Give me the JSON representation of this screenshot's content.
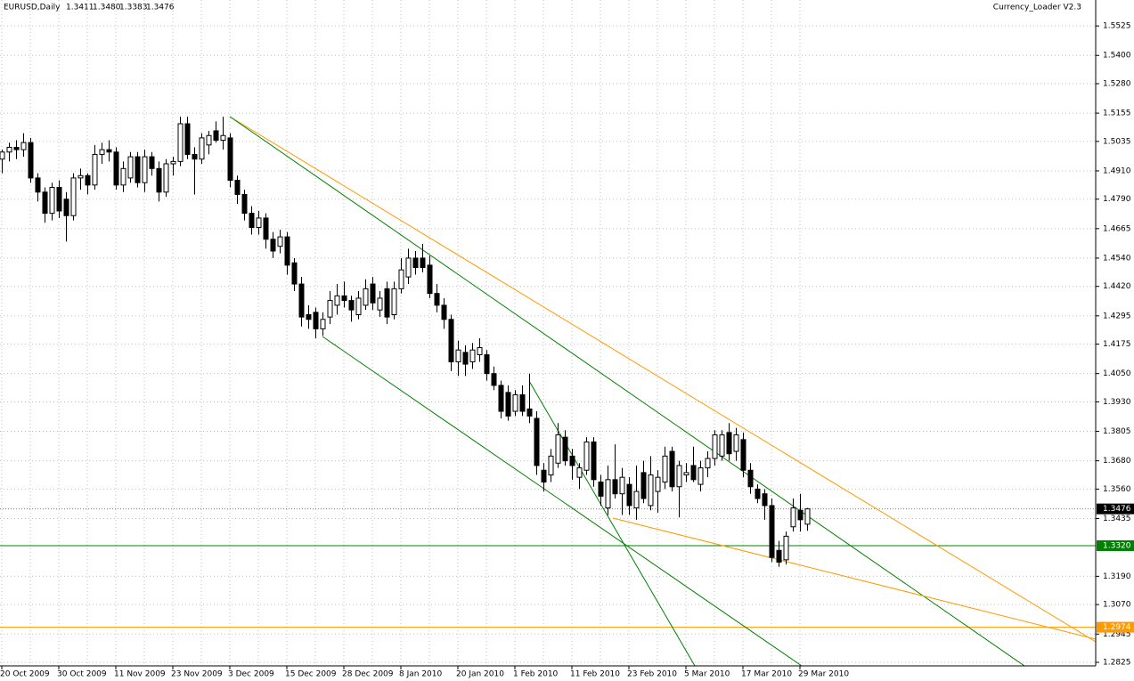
{
  "chart_data": {
    "type": "candlestick",
    "header": {
      "symbol": "EURUSD,Daily",
      "ohlc": [
        "1.3411",
        "1.3480",
        "1.3383",
        "1.3476"
      ]
    },
    "indicator_label": "Currency_Loader V2.3",
    "categories": [
      "20 Oct 2009",
      null,
      null,
      null,
      null,
      null,
      null,
      null,
      "30 Oct 2009",
      null,
      null,
      null,
      null,
      null,
      null,
      null,
      "11 Nov 2009",
      null,
      null,
      null,
      null,
      null,
      null,
      null,
      "23 Nov 2009",
      null,
      null,
      null,
      null,
      null,
      null,
      null,
      "3 Dec 2009",
      null,
      null,
      null,
      null,
      null,
      null,
      null,
      "15 Dec 2009",
      null,
      null,
      null,
      null,
      null,
      null,
      null,
      "28 Dec 2009",
      null,
      null,
      null,
      null,
      null,
      null,
      null,
      "8 Jan 2010",
      null,
      null,
      null,
      null,
      null,
      null,
      null,
      "20 Jan 2010",
      null,
      null,
      null,
      null,
      null,
      null,
      null,
      "1 Feb 2010",
      null,
      null,
      null,
      null,
      null,
      null,
      null,
      "11 Feb 2010",
      null,
      null,
      null,
      null,
      null,
      null,
      null,
      "23 Feb 2010",
      null,
      null,
      null,
      null,
      null,
      null,
      null,
      "5 Mar 2010",
      null,
      null,
      null,
      null,
      null,
      null,
      null,
      "17 Mar 2010",
      null,
      null,
      null,
      null,
      null,
      null,
      null,
      "29 Mar 2010",
      null
    ],
    "open": [
      1.496,
      1.499,
      1.501,
      1.5,
      1.503,
      1.488,
      1.482,
      1.473,
      1.484,
      1.479,
      1.472,
      1.488,
      1.489,
      1.485,
      1.498,
      1.5,
      1.499,
      1.485,
      1.488,
      1.497,
      1.486,
      1.497,
      1.492,
      1.482,
      1.494,
      1.495,
      1.511,
      1.498,
      1.496,
      1.502,
      1.508,
      1.504,
      1.505,
      1.487,
      1.481,
      1.473,
      1.467,
      1.471,
      1.462,
      1.459,
      1.463,
      1.452,
      1.443,
      1.43,
      1.431,
      1.424,
      1.429,
      1.434,
      1.438,
      1.436,
      1.43,
      1.434,
      1.443,
      1.432,
      1.441,
      1.43,
      1.441,
      1.446,
      1.454,
      1.454,
      1.451,
      1.439,
      1.434,
      1.428,
      1.41,
      1.414,
      1.41,
      1.413,
      1.413,
      1.405,
      1.4,
      1.397,
      1.389,
      1.396,
      1.39,
      1.386,
      1.364,
      1.362,
      1.367,
      1.378,
      1.37,
      1.361,
      1.364,
      1.376,
      1.359,
      1.348,
      1.36,
      1.354,
      1.358,
      1.348,
      1.363,
      1.349,
      1.355,
      1.359,
      1.372,
      1.357,
      1.362,
      1.366,
      1.358,
      1.365,
      1.369,
      1.37,
      1.38,
      1.372,
      1.377,
      1.364,
      1.356,
      1.354,
      1.349,
      1.33,
      1.326,
      1.34,
      1.347,
      1.3411
    ],
    "high": [
      1.5,
      1.503,
      1.504,
      1.507,
      1.505,
      1.49,
      1.484,
      1.486,
      1.487,
      1.482,
      1.49,
      1.492,
      1.49,
      1.502,
      1.503,
      1.504,
      1.501,
      1.495,
      1.499,
      1.499,
      1.5,
      1.499,
      1.495,
      1.496,
      1.497,
      1.514,
      1.514,
      1.501,
      1.507,
      1.508,
      1.512,
      1.514,
      1.507,
      1.489,
      1.483,
      1.476,
      1.474,
      1.473,
      1.465,
      1.466,
      1.465,
      1.454,
      1.446,
      1.434,
      1.433,
      1.431,
      1.44,
      1.443,
      1.444,
      1.438,
      1.44,
      1.445,
      1.446,
      1.44,
      1.444,
      1.444,
      1.454,
      1.458,
      1.457,
      1.46,
      1.455,
      1.443,
      1.437,
      1.43,
      1.419,
      1.417,
      1.418,
      1.42,
      1.415,
      1.408,
      1.402,
      1.4,
      1.398,
      1.4,
      1.405,
      1.389,
      1.367,
      1.373,
      1.384,
      1.381,
      1.373,
      1.367,
      1.378,
      1.378,
      1.362,
      1.366,
      1.375,
      1.365,
      1.361,
      1.366,
      1.368,
      1.37,
      1.364,
      1.374,
      1.374,
      1.368,
      1.367,
      1.374,
      1.368,
      1.372,
      1.381,
      1.381,
      1.384,
      1.382,
      1.38,
      1.367,
      1.358,
      1.356,
      1.352,
      1.334,
      1.338,
      1.352,
      1.354,
      1.348
    ],
    "low": [
      1.49,
      1.495,
      1.496,
      1.497,
      1.486,
      1.478,
      1.469,
      1.47,
      1.471,
      1.461,
      1.47,
      1.483,
      1.481,
      1.483,
      1.494,
      1.495,
      1.483,
      1.482,
      1.486,
      1.484,
      1.482,
      1.489,
      1.478,
      1.48,
      1.489,
      1.493,
      1.496,
      1.481,
      1.494,
      1.498,
      1.503,
      1.5,
      1.484,
      1.477,
      1.47,
      1.464,
      1.464,
      1.458,
      1.454,
      1.456,
      1.447,
      1.44,
      1.425,
      1.424,
      1.42,
      1.421,
      1.426,
      1.43,
      1.433,
      1.427,
      1.428,
      1.432,
      1.432,
      1.429,
      1.426,
      1.428,
      1.439,
      1.443,
      1.447,
      1.448,
      1.437,
      1.431,
      1.424,
      1.406,
      1.404,
      1.404,
      1.407,
      1.41,
      1.402,
      1.398,
      1.386,
      1.385,
      1.387,
      1.387,
      1.384,
      1.362,
      1.355,
      1.359,
      1.365,
      1.366,
      1.36,
      1.356,
      1.362,
      1.357,
      1.349,
      1.345,
      1.352,
      1.345,
      1.345,
      1.343,
      1.35,
      1.347,
      1.346,
      1.356,
      1.355,
      1.344,
      1.359,
      1.359,
      1.355,
      1.361,
      1.366,
      1.368,
      1.368,
      1.368,
      1.361,
      1.354,
      1.35,
      1.343,
      1.325,
      1.323,
      1.324,
      1.338,
      1.338,
      1.3383
    ],
    "close": [
      1.499,
      1.501,
      1.5,
      1.503,
      1.488,
      1.482,
      1.473,
      1.484,
      1.474,
      1.472,
      1.488,
      1.489,
      1.485,
      1.498,
      1.5,
      1.499,
      1.485,
      1.492,
      1.497,
      1.486,
      1.497,
      1.492,
      1.482,
      1.494,
      1.495,
      1.511,
      1.498,
      1.496,
      1.505,
      1.506,
      1.504,
      1.506,
      1.487,
      1.481,
      1.473,
      1.467,
      1.471,
      1.462,
      1.457,
      1.463,
      1.451,
      1.443,
      1.429,
      1.428,
      1.424,
      1.428,
      1.436,
      1.438,
      1.436,
      1.432,
      1.437,
      1.441,
      1.435,
      1.437,
      1.429,
      1.441,
      1.449,
      1.454,
      1.45,
      1.45,
      1.439,
      1.434,
      1.428,
      1.41,
      1.415,
      1.409,
      1.415,
      1.416,
      1.405,
      1.4,
      1.389,
      1.387,
      1.396,
      1.389,
      1.387,
      1.366,
      1.359,
      1.37,
      1.379,
      1.368,
      1.366,
      1.365,
      1.376,
      1.36,
      1.353,
      1.36,
      1.354,
      1.361,
      1.349,
      1.355,
      1.352,
      1.362,
      1.361,
      1.37,
      1.357,
      1.366,
      1.363,
      1.36,
      1.365,
      1.369,
      1.379,
      1.379,
      1.371,
      1.379,
      1.364,
      1.357,
      1.352,
      1.349,
      1.327,
      1.325,
      1.336,
      1.348,
      1.343,
      1.3476
    ],
    "ylim": [
      1.281,
      1.5635
    ],
    "yticks": [
      1.5525,
      {
        "value": 1.54,
        "label": "1.5400"
      },
      {
        "value": 1.528,
        "label": "1.5280"
      },
      1.5155,
      1.5035,
      {
        "value": 1.491,
        "label": "1.4910"
      },
      {
        "value": 1.479,
        "label": "1.4790"
      },
      1.4665,
      {
        "value": 1.454,
        "label": "1.4540"
      },
      {
        "value": 1.442,
        "label": "1.4420"
      },
      1.4295,
      1.4175,
      {
        "value": 1.405,
        "label": "1.4050"
      },
      {
        "value": 1.393,
        "label": "1.3930"
      },
      1.3805,
      {
        "value": 1.368,
        "label": "1.3680"
      },
      {
        "value": 1.356,
        "label": "1.3560"
      },
      1.3435,
      {
        "value": 1.319,
        "label": "1.3190"
      },
      {
        "value": 1.307,
        "label": "1.3070"
      },
      1.2945,
      1.2825
    ],
    "levels": [
      {
        "value": 1.3476,
        "label": "1.3476",
        "color": "#000000",
        "style": "dotted"
      },
      {
        "value": 1.332,
        "label": "1.3320",
        "color": "#008000",
        "style": "solid"
      },
      {
        "value": 1.2974,
        "label": "1.2974",
        "color": "#ff9900",
        "style": "solid"
      }
    ],
    "grid": true,
    "bull_color": "#ffffff",
    "bear_color": "#000000"
  }
}
